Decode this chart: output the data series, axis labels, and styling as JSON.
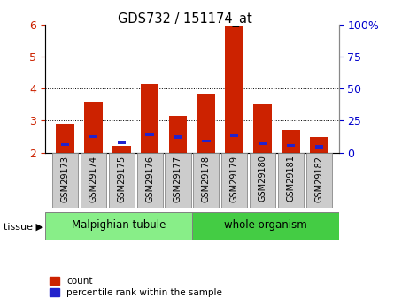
{
  "title": "GDS732 / 151174_at",
  "samples": [
    "GSM29173",
    "GSM29174",
    "GSM29175",
    "GSM29176",
    "GSM29177",
    "GSM29178",
    "GSM29179",
    "GSM29180",
    "GSM29181",
    "GSM29182"
  ],
  "red_values": [
    2.9,
    3.6,
    2.2,
    4.15,
    3.15,
    3.83,
    5.95,
    3.5,
    2.7,
    2.48
  ],
  "blue_values": [
    2.25,
    2.5,
    2.3,
    2.55,
    2.48,
    2.35,
    2.52,
    2.28,
    2.22,
    2.18
  ],
  "bar_base": 2.0,
  "ylim_left": [
    2,
    6
  ],
  "ylim_right": [
    0,
    100
  ],
  "yticks_left": [
    2,
    3,
    4,
    5,
    6
  ],
  "yticks_right": [
    0,
    25,
    50,
    75,
    100
  ],
  "yticklabels_right": [
    "0",
    "25",
    "50",
    "75",
    "100%"
  ],
  "red_color": "#cc2200",
  "blue_color": "#2222cc",
  "tissue_groups": [
    {
      "label": "Malpighian tubule",
      "n": 5,
      "color": "#88ee88"
    },
    {
      "label": "whole organism",
      "n": 5,
      "color": "#44cc44"
    }
  ],
  "tissue_label": "tissue",
  "legend_count": "count",
  "legend_percentile": "percentile rank within the sample",
  "bar_width": 0.65,
  "tick_label_color_left": "#cc2200",
  "tick_label_color_right": "#0000cc",
  "xlabel_bg": "#cccccc",
  "sample_box_edge": "#888888"
}
